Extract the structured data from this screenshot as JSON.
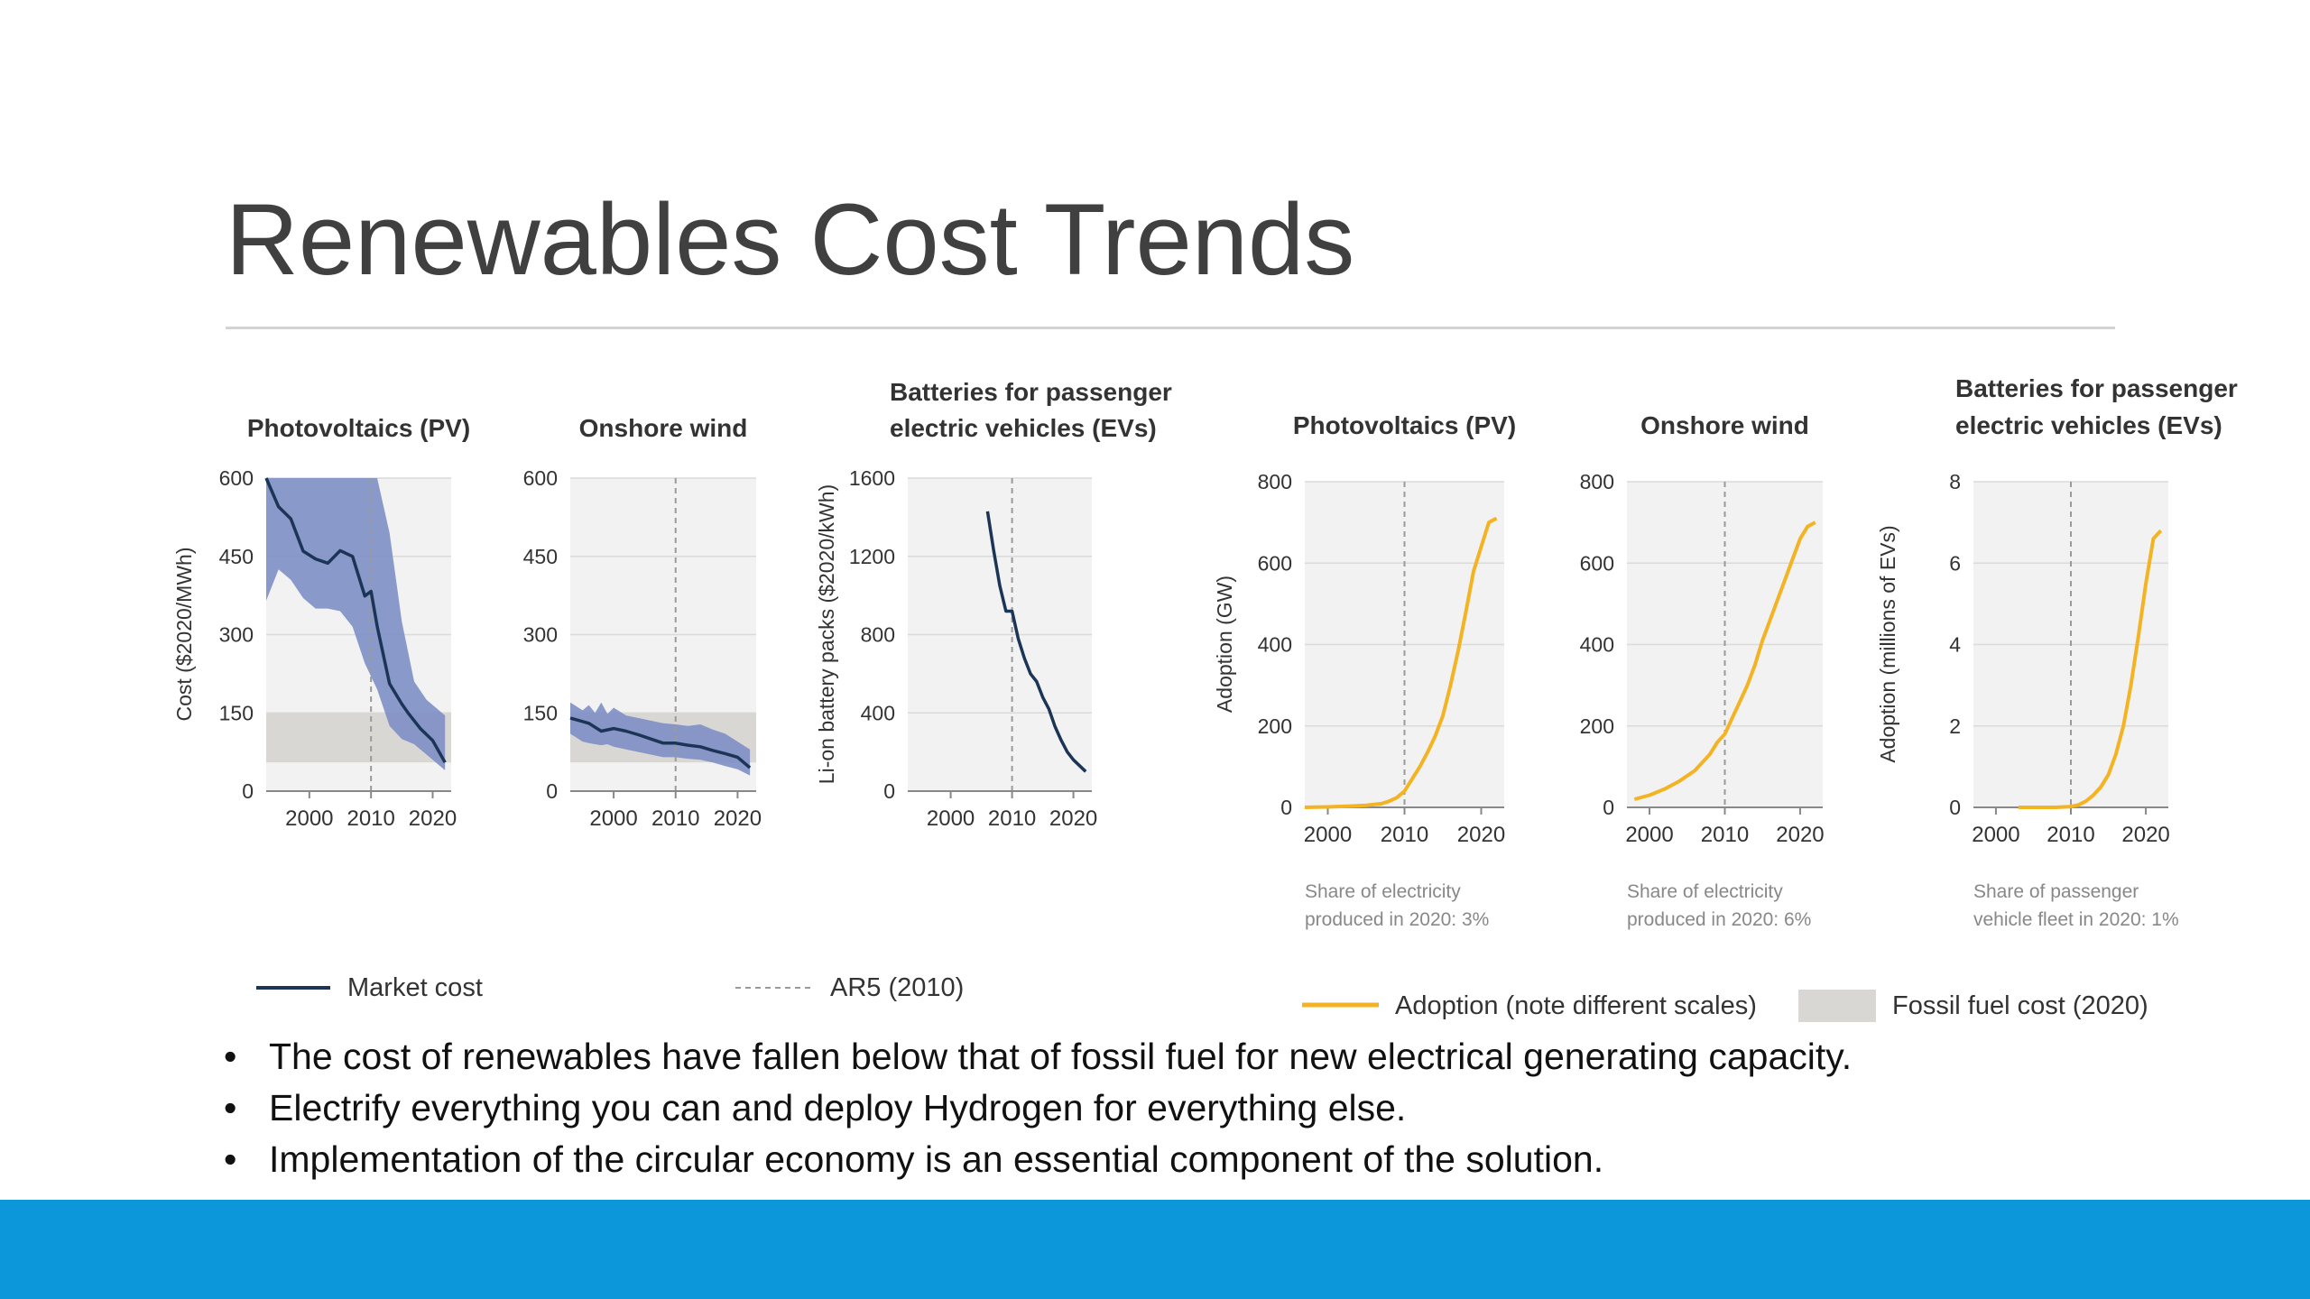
{
  "slide": {
    "title": "Renewables Cost Trends",
    "bullets": [
      "The cost of renewables have fallen below that of fossil fuel for new electrical generating capacity.",
      "Electrify everything you can and deploy Hydrogen for everything else.",
      "Implementation of the circular economy is an essential component of the solution."
    ]
  },
  "colors": {
    "market_cost": "#1c3557",
    "cost_band": "#7d8fc4",
    "adoption": "#f3b323",
    "fossil_band": "#d9d7d3",
    "plot_bg": "#f2f2f2",
    "footer": "#0b97d9"
  },
  "legends": {
    "cost": [
      {
        "label": "Market cost",
        "style": "solid-navy-line"
      },
      {
        "label": "AR5 (2010)",
        "style": "dashed-gray-line"
      }
    ],
    "adoption": [
      {
        "label": "Adoption (note different scales)",
        "style": "solid-orange-line"
      },
      {
        "label": "Fossil fuel cost (2020)",
        "style": "gray-box"
      }
    ]
  },
  "chart_data": [
    {
      "id": "pv-cost",
      "type": "line",
      "title": "Photovoltaics (PV)",
      "ylabel": "Cost ($2020/MWh)",
      "xlim": [
        1993,
        2023
      ],
      "ylim": [
        0,
        600
      ],
      "yticks": [
        "600",
        "450",
        "300",
        "150",
        "0"
      ],
      "xticks": [
        "2000",
        "2010",
        "2020"
      ],
      "ar5_year": 2010,
      "fossil_range": [
        55,
        150
      ],
      "series": [
        {
          "name": "Market cost",
          "x": [
            1993,
            1995,
            1997,
            1999,
            2001,
            2003,
            2005,
            2007,
            2009,
            2010,
            2011,
            2013,
            2015,
            2016,
            2018,
            2020,
            2022
          ],
          "y": [
            600,
            545,
            522,
            460,
            445,
            437,
            461,
            450,
            374,
            383,
            316,
            206,
            167,
            150,
            120,
            97,
            55
          ]
        }
      ],
      "band": {
        "x": [
          1993,
          1995,
          1997,
          1999,
          2001,
          2003,
          2005,
          2007,
          2009,
          2011,
          2013,
          2015,
          2017,
          2019,
          2022
        ],
        "lower": [
          365,
          425,
          405,
          370,
          350,
          350,
          345,
          315,
          245,
          195,
          125,
          100,
          90,
          70,
          40
        ],
        "upper": [
          600,
          600,
          600,
          600,
          600,
          600,
          600,
          600,
          600,
          600,
          495,
          325,
          210,
          175,
          145
        ]
      }
    },
    {
      "id": "wind-cost",
      "type": "line",
      "title": "Onshore wind",
      "ylabel": "",
      "xlim": [
        1993,
        2023
      ],
      "ylim": [
        0,
        600
      ],
      "yticks": [
        "600",
        "450",
        "300",
        "150",
        "0"
      ],
      "xticks": [
        "2000",
        "2010",
        "2020"
      ],
      "ar5_year": 2010,
      "fossil_range": [
        55,
        150
      ],
      "series": [
        {
          "name": "Market cost",
          "x": [
            1993,
            1996,
            1998,
            2000,
            2002,
            2004,
            2006,
            2008,
            2010,
            2012,
            2014,
            2016,
            2018,
            2020,
            2022
          ],
          "y": [
            140,
            130,
            115,
            120,
            115,
            108,
            100,
            92,
            92,
            88,
            85,
            78,
            72,
            65,
            45
          ]
        }
      ],
      "band": {
        "x": [
          1993,
          1995,
          1996,
          1997,
          1998,
          1999,
          2000,
          2002,
          2004,
          2006,
          2008,
          2010,
          2012,
          2014,
          2016,
          2018,
          2020,
          2022
        ],
        "lower": [
          110,
          95,
          92,
          90,
          88,
          90,
          85,
          80,
          75,
          70,
          65,
          65,
          62,
          60,
          55,
          48,
          42,
          30
        ],
        "upper": [
          170,
          155,
          165,
          150,
          170,
          148,
          160,
          145,
          140,
          135,
          130,
          128,
          125,
          128,
          118,
          110,
          95,
          80
        ]
      }
    },
    {
      "id": "ev-battery-cost",
      "type": "line",
      "title": "Batteries for passenger electric vehicles (EVs)",
      "ylabel": "Li-on battery packs ($2020/kWh)",
      "xlim": [
        1993,
        2023
      ],
      "ylim": [
        0,
        1600
      ],
      "yticks": [
        "1600",
        "1200",
        "800",
        "400",
        "0"
      ],
      "xticks": [
        "2000",
        "2010",
        "2020"
      ],
      "ar5_year": 2010,
      "series": [
        {
          "name": "Market cost",
          "x": [
            2006,
            2007,
            2008,
            2009,
            2010,
            2011,
            2012,
            2013,
            2014,
            2015,
            2016,
            2017,
            2018,
            2019,
            2020,
            2021,
            2022
          ],
          "y": [
            1430,
            1230,
            1050,
            920,
            920,
            780,
            680,
            600,
            560,
            480,
            420,
            330,
            260,
            200,
            160,
            130,
            100
          ]
        }
      ]
    },
    {
      "id": "pv-adoption",
      "type": "line",
      "title": "Photovoltaics (PV)",
      "ylabel": "Adoption (GW)",
      "xlim": [
        1997,
        2023
      ],
      "ylim": [
        0,
        800
      ],
      "yticks": [
        "800",
        "600",
        "400",
        "200",
        "0"
      ],
      "xticks": [
        "2000",
        "2010",
        "2020"
      ],
      "ar5_year": 2010,
      "note": [
        "Share of electricity",
        "produced in 2020: 3%"
      ],
      "series": [
        {
          "name": "Adoption",
          "x": [
            1997,
            2000,
            2003,
            2005,
            2007,
            2008,
            2009,
            2010,
            2011,
            2012,
            2013,
            2014,
            2015,
            2016,
            2017,
            2018,
            2019,
            2020,
            2021,
            2022
          ],
          "y": [
            0,
            1,
            3,
            5,
            9,
            15,
            24,
            40,
            70,
            100,
            135,
            175,
            225,
            300,
            385,
            480,
            580,
            640,
            700,
            710
          ]
        }
      ]
    },
    {
      "id": "wind-adoption",
      "type": "line",
      "title": "Onshore wind",
      "ylabel": "",
      "xlim": [
        1997,
        2023
      ],
      "ylim": [
        0,
        800
      ],
      "yticks": [
        "800",
        "600",
        "400",
        "200",
        "0"
      ],
      "xticks": [
        "2000",
        "2010",
        "2020"
      ],
      "ar5_year": 2010,
      "note": [
        "Share of electricity",
        "produced in 2020: 6%"
      ],
      "series": [
        {
          "name": "Adoption",
          "x": [
            1998,
            2000,
            2002,
            2004,
            2006,
            2008,
            2009,
            2010,
            2011,
            2012,
            2013,
            2014,
            2015,
            2016,
            2017,
            2018,
            2019,
            2020,
            2021,
            2022
          ],
          "y": [
            20,
            30,
            45,
            65,
            90,
            130,
            160,
            180,
            220,
            260,
            300,
            350,
            410,
            460,
            510,
            560,
            610,
            660,
            690,
            700
          ]
        }
      ]
    },
    {
      "id": "ev-adoption",
      "type": "line",
      "title": "Batteries for passenger electric vehicles (EVs)",
      "ylabel": "Adoption (millions of EVs)",
      "xlim": [
        1997,
        2023
      ],
      "ylim": [
        0,
        8
      ],
      "yticks": [
        "8",
        "6",
        "4",
        "2",
        "0"
      ],
      "xticks": [
        "2000",
        "2010",
        "2020"
      ],
      "ar5_year": 2010,
      "note": [
        "Share of passenger",
        "vehicle fleet in 2020: 1%"
      ],
      "series": [
        {
          "name": "Adoption",
          "x": [
            2003,
            2008,
            2010,
            2011,
            2012,
            2013,
            2014,
            2015,
            2016,
            2017,
            2018,
            2019,
            2020,
            2021,
            2022
          ],
          "y": [
            0,
            0,
            0.02,
            0.06,
            0.15,
            0.3,
            0.5,
            0.8,
            1.3,
            2.0,
            3.0,
            4.2,
            5.5,
            6.6,
            6.8
          ]
        }
      ]
    }
  ]
}
